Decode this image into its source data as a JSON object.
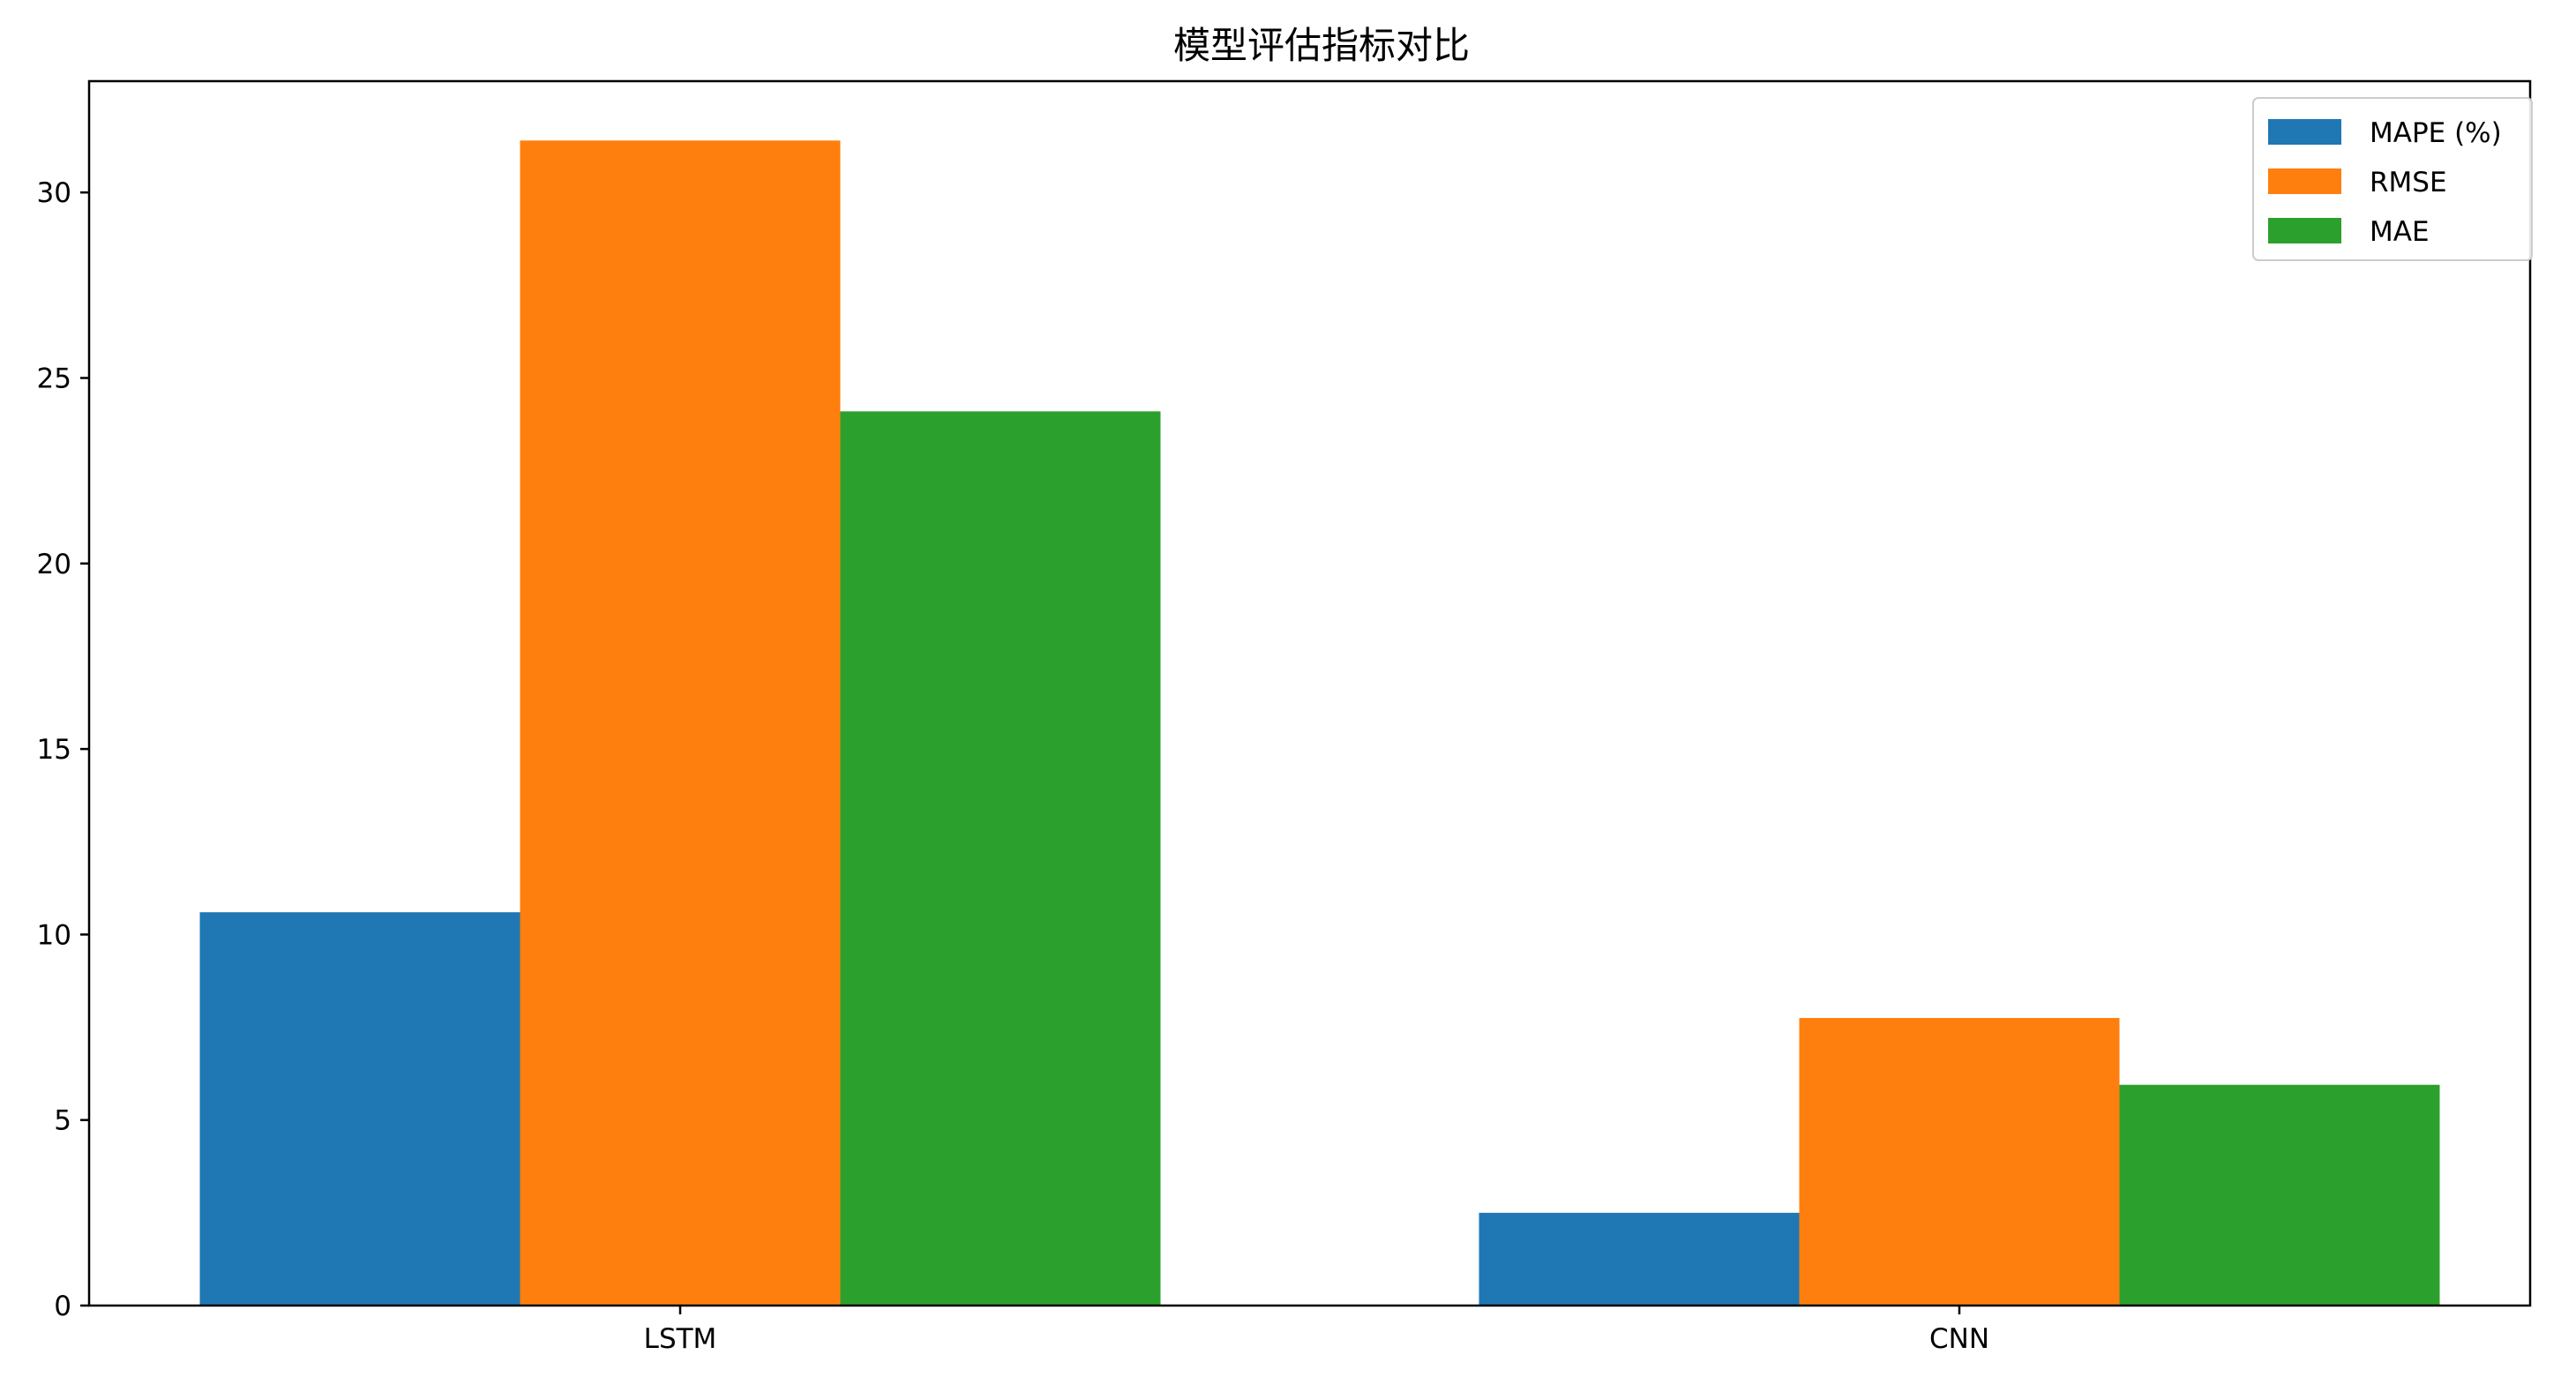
{
  "chart_data": {
    "type": "bar",
    "title": "模型评估指标对比",
    "xlabel": "",
    "ylabel": "",
    "categories": [
      "LSTM",
      "CNN"
    ],
    "series": [
      {
        "name": "MAPE (%)",
        "values": [
          10.6,
          2.5
        ],
        "color": "#1f77b4"
      },
      {
        "name": "RMSE",
        "values": [
          31.4,
          7.75
        ],
        "color": "#ff7f0e"
      },
      {
        "name": "MAE",
        "values": [
          24.1,
          5.95
        ],
        "color": "#2ca02c"
      }
    ],
    "ylim": [
      0,
      33
    ],
    "yticks": [
      0,
      5,
      10,
      15,
      20,
      25,
      30
    ],
    "grid": false,
    "legend_position": "top-right"
  }
}
